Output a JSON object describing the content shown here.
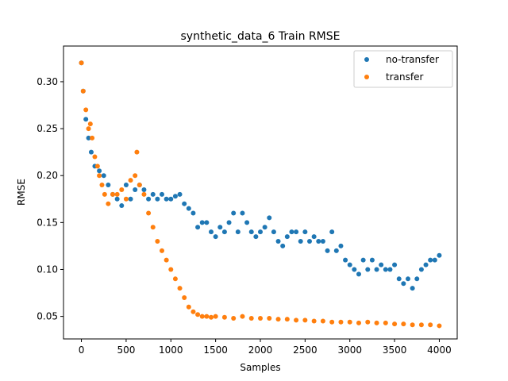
{
  "chart_data": {
    "type": "scatter",
    "title": "synthetic_data_6 Train RMSE",
    "xlabel": "Samples",
    "ylabel": "RMSE",
    "xlim": [
      -200,
      4200
    ],
    "ylim": [
      0.026,
      0.338
    ],
    "xticks": [
      0,
      500,
      1000,
      1500,
      2000,
      2500,
      3000,
      3500,
      4000
    ],
    "xtick_labels": [
      "0",
      "500",
      "1000",
      "1500",
      "2000",
      "2500",
      "3000",
      "3500",
      "4000"
    ],
    "yticks": [
      0.05,
      0.1,
      0.15,
      0.2,
      0.25,
      0.3
    ],
    "ytick_labels": [
      "0.05",
      "0.10",
      "0.15",
      "0.20",
      "0.25",
      "0.30"
    ],
    "grid": false,
    "legend": {
      "position": "top-right"
    },
    "series": [
      {
        "name": "no-transfer",
        "color": "#1f77b4",
        "marker": "dot",
        "x": [
          0,
          20,
          50,
          80,
          110,
          150,
          200,
          250,
          300,
          350,
          400,
          450,
          500,
          550,
          600,
          650,
          700,
          750,
          800,
          850,
          900,
          950,
          1000,
          1050,
          1100,
          1150,
          1200,
          1250,
          1300,
          1350,
          1400,
          1450,
          1500,
          1550,
          1600,
          1650,
          1700,
          1750,
          1800,
          1850,
          1900,
          1950,
          2000,
          2050,
          2100,
          2150,
          2200,
          2250,
          2300,
          2350,
          2400,
          2450,
          2500,
          2550,
          2600,
          2650,
          2700,
          2750,
          2800,
          2850,
          2900,
          2950,
          3000,
          3050,
          3100,
          3150,
          3200,
          3250,
          3300,
          3350,
          3400,
          3450,
          3500,
          3550,
          3600,
          3650,
          3700,
          3750,
          3800,
          3850,
          3900,
          3950,
          4000
        ],
        "y": [
          0.32,
          0.29,
          0.26,
          0.24,
          0.225,
          0.21,
          0.205,
          0.2,
          0.19,
          0.18,
          0.175,
          0.168,
          0.19,
          0.175,
          0.185,
          0.19,
          0.185,
          0.175,
          0.18,
          0.175,
          0.18,
          0.175,
          0.175,
          0.178,
          0.18,
          0.17,
          0.165,
          0.16,
          0.145,
          0.15,
          0.15,
          0.14,
          0.135,
          0.145,
          0.14,
          0.15,
          0.16,
          0.14,
          0.16,
          0.15,
          0.14,
          0.135,
          0.14,
          0.145,
          0.155,
          0.14,
          0.13,
          0.125,
          0.135,
          0.14,
          0.14,
          0.13,
          0.14,
          0.13,
          0.135,
          0.13,
          0.13,
          0.12,
          0.14,
          0.12,
          0.125,
          0.11,
          0.105,
          0.1,
          0.095,
          0.11,
          0.1,
          0.11,
          0.1,
          0.105,
          0.1,
          0.1,
          0.105,
          0.09,
          0.085,
          0.09,
          0.08,
          0.09,
          0.1,
          0.105,
          0.11,
          0.11,
          0.115
        ]
      },
      {
        "name": "transfer",
        "color": "#ff7f0e",
        "marker": "dot",
        "x": [
          0,
          20,
          50,
          80,
          100,
          120,
          150,
          180,
          200,
          230,
          260,
          300,
          350,
          400,
          450,
          500,
          550,
          600,
          620,
          650,
          700,
          750,
          800,
          850,
          900,
          950,
          1000,
          1050,
          1100,
          1150,
          1200,
          1250,
          1300,
          1350,
          1400,
          1450,
          1500,
          1600,
          1700,
          1800,
          1900,
          2000,
          2100,
          2200,
          2300,
          2400,
          2500,
          2600,
          2700,
          2800,
          2900,
          3000,
          3100,
          3200,
          3300,
          3400,
          3500,
          3600,
          3700,
          3800,
          3900,
          4000
        ],
        "y": [
          0.32,
          0.29,
          0.27,
          0.25,
          0.255,
          0.24,
          0.22,
          0.21,
          0.2,
          0.19,
          0.18,
          0.17,
          0.18,
          0.18,
          0.185,
          0.175,
          0.195,
          0.2,
          0.225,
          0.19,
          0.18,
          0.16,
          0.145,
          0.13,
          0.12,
          0.11,
          0.1,
          0.09,
          0.08,
          0.07,
          0.06,
          0.055,
          0.052,
          0.05,
          0.05,
          0.049,
          0.05,
          0.049,
          0.048,
          0.05,
          0.048,
          0.048,
          0.048,
          0.047,
          0.047,
          0.046,
          0.046,
          0.045,
          0.045,
          0.044,
          0.044,
          0.044,
          0.043,
          0.044,
          0.043,
          0.043,
          0.042,
          0.042,
          0.041,
          0.041,
          0.041,
          0.04
        ]
      }
    ]
  }
}
